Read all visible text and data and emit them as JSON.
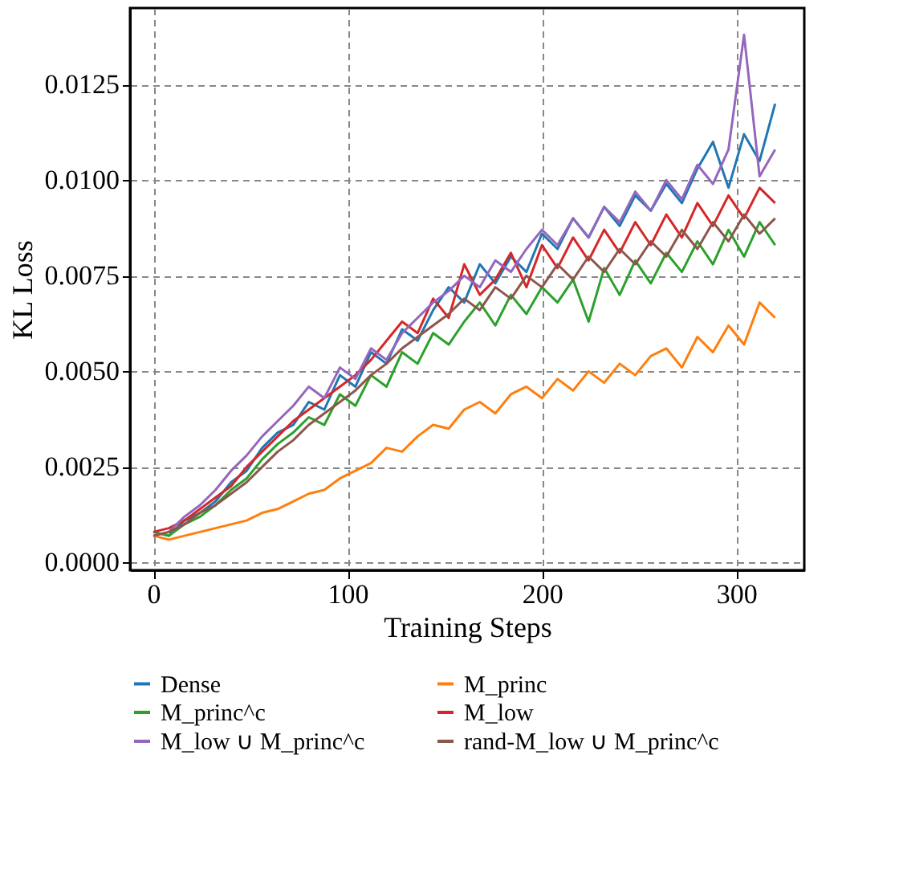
{
  "chart_data": [
    {
      "type": "line",
      "xlabel": "Training Steps",
      "ylabel": "KL Loss",
      "x": [
        0,
        8,
        16,
        24,
        32,
        40,
        48,
        56,
        64,
        72,
        80,
        88,
        96,
        104,
        112,
        120,
        128,
        136,
        144,
        152,
        160,
        168,
        176,
        184,
        192,
        200,
        208,
        216,
        224,
        232,
        240,
        248,
        256,
        264,
        272,
        280,
        288,
        296,
        304,
        312,
        320
      ],
      "series": [
        {
          "name": "Dense",
          "color": "#1f77b4",
          "values": [
            0.0008,
            0.0007,
            0.0011,
            0.0013,
            0.0016,
            0.0021,
            0.0024,
            0.003,
            0.0034,
            0.0036,
            0.0042,
            0.004,
            0.0049,
            0.0046,
            0.0055,
            0.0052,
            0.0061,
            0.0058,
            0.0066,
            0.0072,
            0.0068,
            0.0078,
            0.0073,
            0.008,
            0.0076,
            0.0086,
            0.0082,
            0.009,
            0.0085,
            0.0093,
            0.0088,
            0.0096,
            0.0092,
            0.0099,
            0.0094,
            0.0103,
            0.011,
            0.0098,
            0.0112,
            0.0105,
            0.012
          ]
        },
        {
          "name": "M_princ",
          "color": "#ff7f0e",
          "values": [
            0.0007,
            0.0006,
            0.0007,
            0.0008,
            0.0009,
            0.001,
            0.0011,
            0.0013,
            0.0014,
            0.0016,
            0.0018,
            0.0019,
            0.0022,
            0.0024,
            0.0026,
            0.003,
            0.0029,
            0.0033,
            0.0036,
            0.0035,
            0.004,
            0.0042,
            0.0039,
            0.0044,
            0.0046,
            0.0043,
            0.0048,
            0.0045,
            0.005,
            0.0047,
            0.0052,
            0.0049,
            0.0054,
            0.0056,
            0.0051,
            0.0059,
            0.0055,
            0.0062,
            0.0057,
            0.0068,
            0.0064
          ]
        },
        {
          "name": "M_princ^c",
          "color": "#2ca02c",
          "values": [
            0.0008,
            0.0007,
            0.001,
            0.0012,
            0.0015,
            0.0019,
            0.0022,
            0.0027,
            0.0031,
            0.0034,
            0.0038,
            0.0036,
            0.0044,
            0.0041,
            0.0049,
            0.0046,
            0.0055,
            0.0052,
            0.006,
            0.0057,
            0.0063,
            0.0068,
            0.0062,
            0.007,
            0.0065,
            0.0072,
            0.0068,
            0.0074,
            0.0063,
            0.0077,
            0.007,
            0.0079,
            0.0073,
            0.0081,
            0.0076,
            0.0084,
            0.0078,
            0.0087,
            0.008,
            0.0089,
            0.0083
          ]
        },
        {
          "name": "M_low",
          "color": "#d62728",
          "values": [
            0.0008,
            0.0009,
            0.0011,
            0.0014,
            0.0017,
            0.002,
            0.0025,
            0.0029,
            0.0033,
            0.0037,
            0.004,
            0.0043,
            0.0046,
            0.0049,
            0.0053,
            0.0058,
            0.0063,
            0.006,
            0.0069,
            0.0064,
            0.0078,
            0.007,
            0.0074,
            0.0081,
            0.0072,
            0.0083,
            0.0077,
            0.0085,
            0.0079,
            0.0087,
            0.0081,
            0.0089,
            0.0083,
            0.0091,
            0.0085,
            0.0094,
            0.0088,
            0.0096,
            0.009,
            0.0098,
            0.0094
          ]
        },
        {
          "name": "M_low ∪ M_princ^c",
          "color": "#9467bd",
          "values": [
            0.0007,
            0.0008,
            0.0012,
            0.0015,
            0.0019,
            0.0024,
            0.0028,
            0.0033,
            0.0037,
            0.0041,
            0.0046,
            0.0043,
            0.0051,
            0.0048,
            0.0056,
            0.0053,
            0.006,
            0.0064,
            0.0068,
            0.0071,
            0.0075,
            0.0072,
            0.0079,
            0.0076,
            0.0082,
            0.0087,
            0.0083,
            0.009,
            0.0085,
            0.0093,
            0.0089,
            0.0097,
            0.0092,
            0.01,
            0.0095,
            0.0104,
            0.0099,
            0.0108,
            0.0138,
            0.0101,
            0.0108
          ]
        },
        {
          "name": "rand-M_low ∪ M_princ^c",
          "color": "#8c564b",
          "values": [
            0.0007,
            0.0008,
            0.001,
            0.0013,
            0.0015,
            0.0018,
            0.0021,
            0.0025,
            0.0029,
            0.0032,
            0.0036,
            0.0039,
            0.0042,
            0.0045,
            0.0049,
            0.0052,
            0.0056,
            0.0059,
            0.0062,
            0.0065,
            0.0069,
            0.0066,
            0.0072,
            0.0069,
            0.0075,
            0.0072,
            0.0078,
            0.0074,
            0.008,
            0.0076,
            0.0082,
            0.0078,
            0.0084,
            0.008,
            0.0087,
            0.0082,
            0.0089,
            0.0084,
            0.0091,
            0.0086,
            0.009
          ]
        }
      ],
      "xlim": [
        -12,
        335
      ],
      "ylim": [
        -0.0002,
        0.0145
      ],
      "xticks": [
        0,
        100,
        200,
        300
      ],
      "yticks": [
        {
          "value": 0,
          "label": "0.0000"
        },
        {
          "value": 0.0025,
          "label": "0.0025"
        },
        {
          "value": 0.005,
          "label": "0.0050"
        },
        {
          "value": 0.0075,
          "label": "0.0075"
        },
        {
          "value": 0.01,
          "label": "0.0100"
        },
        {
          "value": 0.0125,
          "label": "0.0125"
        }
      ],
      "grid": true,
      "legend": "bottom",
      "line_style": "solid",
      "marker": "none"
    }
  ]
}
